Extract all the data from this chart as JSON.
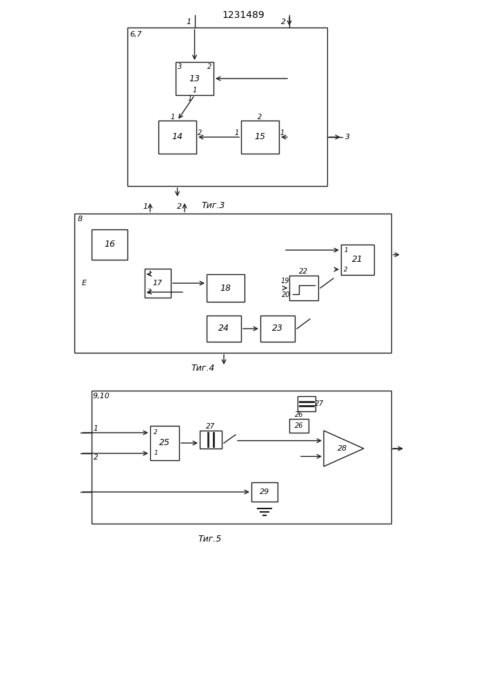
{
  "title": "1231489",
  "bg_color": "#ffffff",
  "line_color": "#1a1a1a",
  "fig3_caption": "Τиг.3",
  "fig4_caption": "Τиг.4",
  "fig5_caption": "Τиг.5"
}
